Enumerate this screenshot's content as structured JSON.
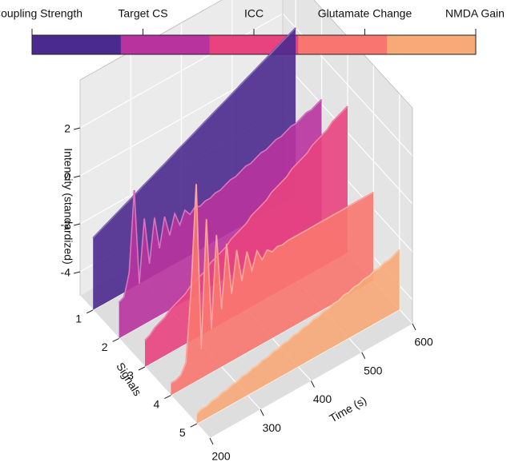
{
  "chart_data": {
    "type": "waterfall3d",
    "x": [
      200,
      210,
      220,
      230,
      240,
      250,
      260,
      270,
      280,
      290,
      300,
      310,
      320,
      330,
      340,
      350,
      360,
      370,
      380,
      390,
      400,
      410,
      420,
      430,
      440,
      450,
      460,
      470,
      480,
      490,
      500,
      510,
      520,
      530,
      540,
      550,
      560,
      570,
      580,
      590,
      600
    ],
    "series": [
      {
        "name": "Coupling Strength",
        "color": "#4b2a8f",
        "values": [
          -2.0,
          -1.9,
          -1.8,
          -1.7,
          -1.6,
          -1.5,
          -1.4,
          -1.3,
          -1.2,
          -1.1,
          -1.0,
          -0.9,
          -0.8,
          -0.7,
          -0.6,
          -0.5,
          -0.4,
          -0.3,
          -0.2,
          -0.1,
          0.0,
          0.1,
          0.2,
          0.3,
          0.4,
          0.5,
          0.6,
          0.7,
          0.8,
          0.9,
          1.0,
          1.1,
          1.2,
          1.3,
          1.4,
          1.5,
          1.6,
          1.7,
          1.8,
          1.9,
          2.0
        ]
      },
      {
        "name": "Target CS",
        "color": "#b8339d",
        "values": [
          -3.5,
          -3.4,
          -2.5,
          0.8,
          -3.2,
          -0.6,
          -2.6,
          -0.8,
          -2.2,
          -1.0,
          -1.9,
          -1.1,
          -1.7,
          -1.2,
          -1.5,
          -1.3,
          -1.4,
          -1.3,
          -1.3,
          -1.2,
          -1.2,
          -1.1,
          -1.0,
          -1.0,
          -0.9,
          -0.8,
          -0.8,
          -0.7,
          -0.6,
          -0.6,
          -0.5,
          -0.4,
          -0.4,
          -0.3,
          -0.2,
          -0.2,
          -0.1,
          0.0,
          0.0,
          0.1,
          0.2
        ]
      },
      {
        "name": "ICC",
        "color": "#e8437f",
        "values": [
          -3.9,
          -3.8,
          -3.6,
          -3.5,
          -3.4,
          -3.2,
          -3.1,
          -3.0,
          -2.9,
          -2.7,
          -2.6,
          -2.5,
          -2.4,
          -2.2,
          -2.1,
          -2.0,
          -1.9,
          -1.7,
          -1.6,
          -1.5,
          -1.4,
          -1.2,
          -1.1,
          -1.0,
          -0.9,
          -0.7,
          -0.6,
          -0.5,
          -0.4,
          -0.2,
          -0.1,
          0.0,
          0.1,
          0.3,
          0.4,
          0.5,
          0.6,
          0.8,
          0.9,
          1.0,
          1.1
        ]
      },
      {
        "name": "Glutamate Change",
        "color": "#f8766f",
        "values": [
          -4.5,
          -4.5,
          -4.4,
          -4.0,
          -1.0,
          3.2,
          -3.8,
          1.5,
          -3.2,
          0.6,
          -2.6,
          0.0,
          -2.2,
          -0.5,
          -1.9,
          -0.8,
          -1.7,
          -1.0,
          -1.5,
          -1.2,
          -1.4,
          -1.3,
          -1.35,
          -1.3,
          -1.3,
          -1.3,
          -1.3,
          -1.3,
          -1.3,
          -1.3,
          -1.3,
          -1.3,
          -1.3,
          -1.3,
          -1.3,
          -1.3,
          -1.3,
          -1.3,
          -1.3,
          -1.3,
          -1.3
        ]
      },
      {
        "name": "NMDA Gain",
        "color": "#f7a977",
        "values": [
          -4.6,
          -4.5,
          -4.5,
          -4.4,
          -4.4,
          -4.3,
          -4.3,
          -4.2,
          -4.2,
          -4.1,
          -4.1,
          -4.0,
          -4.0,
          -3.9,
          -3.9,
          -3.8,
          -3.8,
          -3.7,
          -3.7,
          -3.6,
          -3.6,
          -3.5,
          -3.5,
          -3.4,
          -3.4,
          -3.3,
          -3.3,
          -3.2,
          -3.2,
          -3.1,
          -3.1,
          -3.0,
          -3.0,
          -2.9,
          -2.9,
          -2.8,
          -2.8,
          -2.7,
          -2.7,
          -2.6,
          -2.5
        ]
      }
    ],
    "xlabel": "Time (s)",
    "xlim": [
      200,
      600
    ],
    "xticks": [
      200,
      300,
      400,
      500,
      600
    ],
    "ylabel": "Signals",
    "ylim": [
      0.5,
      5.5
    ],
    "yticks": [
      1,
      2,
      3,
      4,
      5
    ],
    "zlabel": "Intensity (standardized)",
    "zlim": [
      -5,
      4
    ],
    "zticks": [
      -4,
      -2,
      0,
      2
    ],
    "grid": true
  }
}
